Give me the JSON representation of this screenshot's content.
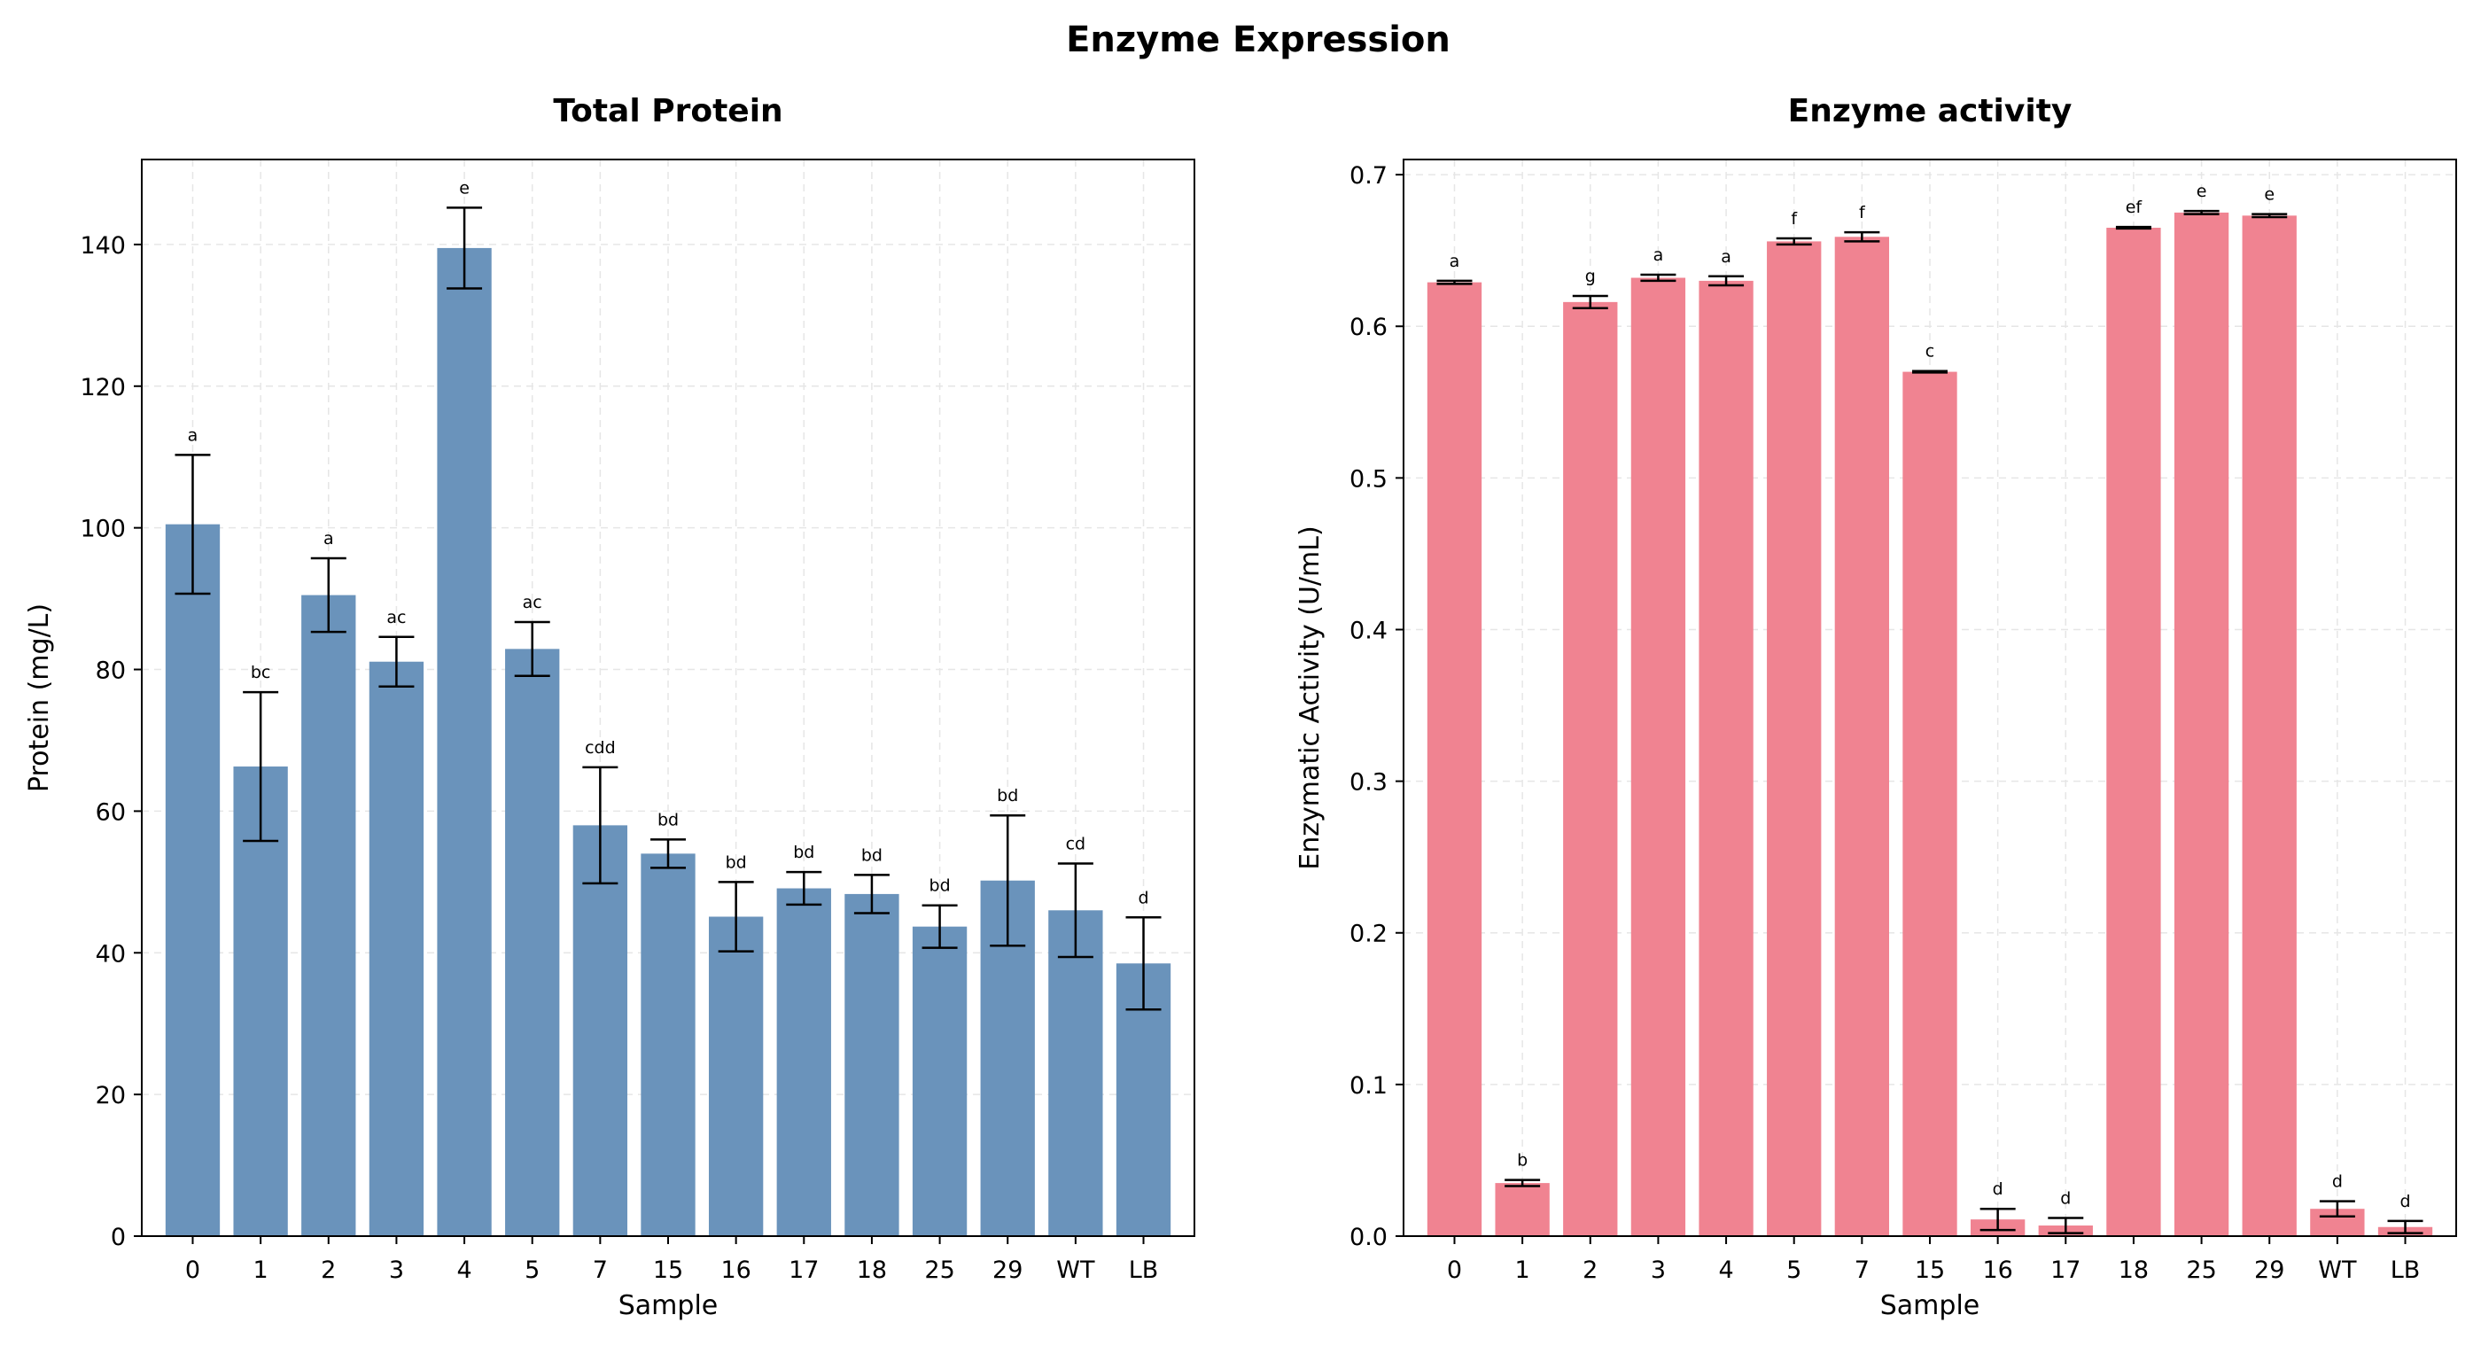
{
  "figure": {
    "suptitle": "Enzyme Expression"
  },
  "chart_data": [
    {
      "type": "bar",
      "title": "Total Protein",
      "xlabel": "Sample",
      "ylabel": "Protein (mg/L)",
      "ylim": [
        0,
        152
      ],
      "yticks": [
        0,
        20,
        40,
        60,
        80,
        100,
        120,
        140
      ],
      "grid": true,
      "color": "#6a93bb",
      "categories": [
        "0",
        "1",
        "2",
        "3",
        "4",
        "5",
        "7",
        "15",
        "16",
        "17",
        "18",
        "25",
        "29",
        "WT",
        "LB"
      ],
      "values": [
        100.5,
        66.3,
        90.5,
        81.1,
        139.5,
        82.9,
        58.0,
        54.0,
        45.1,
        49.1,
        48.3,
        43.7,
        50.2,
        46.0,
        38.5
      ],
      "errors": [
        9.8,
        10.5,
        5.2,
        3.5,
        5.7,
        3.8,
        8.2,
        2.0,
        4.9,
        2.3,
        2.7,
        3.0,
        9.2,
        6.6,
        6.5
      ],
      "significance": [
        "a",
        "bc",
        "a",
        "ac",
        "e",
        "ac",
        "cdd",
        "bd",
        "bd",
        "bd",
        "bd",
        "bd",
        "bd",
        "cd",
        "d"
      ]
    },
    {
      "type": "bar",
      "title": "Enzyme activity",
      "xlabel": "Sample",
      "ylabel": "Enzymatic Activity (U/mL)",
      "ylim": [
        0,
        0.71
      ],
      "yticks": [
        0.0,
        0.1,
        0.2,
        0.3,
        0.4,
        0.5,
        0.6,
        0.7
      ],
      "yticklabels": [
        "0.0",
        "0.1",
        "0.2",
        "0.3",
        "0.4",
        "0.5",
        "0.6",
        "0.7"
      ],
      "grid": true,
      "color": "#f08391",
      "categories": [
        "0",
        "1",
        "2",
        "3",
        "4",
        "5",
        "7",
        "15",
        "16",
        "17",
        "18",
        "25",
        "29",
        "WT",
        "LB"
      ],
      "values": [
        0.629,
        0.035,
        0.616,
        0.632,
        0.63,
        0.656,
        0.659,
        0.57,
        0.011,
        0.007,
        0.665,
        0.675,
        0.673,
        0.018,
        0.006
      ],
      "errors": [
        0.001,
        0.002,
        0.004,
        0.002,
        0.003,
        0.002,
        0.003,
        0.0005,
        0.007,
        0.005,
        0.0005,
        0.001,
        0.001,
        0.005,
        0.004
      ],
      "significance": [
        "a",
        "b",
        "g",
        "a",
        "a",
        "f",
        "f",
        "c",
        "d",
        "d",
        "ef",
        "e",
        "e",
        "d",
        "d"
      ]
    }
  ]
}
